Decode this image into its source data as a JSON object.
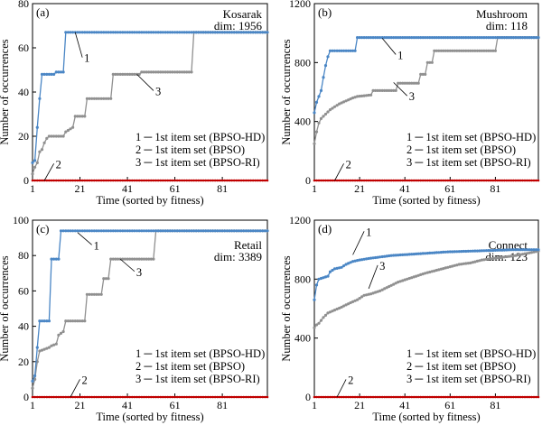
{
  "colors": {
    "series1": "#4a86c5",
    "series2": "#c00000",
    "series3": "#909090",
    "axis": "#000000",
    "background": "#ffffff"
  },
  "chart_data": [
    {
      "type": "line",
      "panel": "(a)",
      "dataset": "Kosarak",
      "dim": "dim: 1956",
      "xlabel": "Time (sorted by fitness)",
      "ylabel": "Number of occurrences",
      "xlim": [
        1,
        100
      ],
      "ylim": [
        0,
        80
      ],
      "xticks": [
        1,
        21,
        41,
        61,
        81
      ],
      "yticks": [
        0,
        20,
        40,
        60,
        80
      ],
      "grid": false,
      "legend": [
        "1 ─ 1st item set (BPSO-HD)",
        "2 ─ 1st item set (BPSO)",
        "3 ─ 1st item set (BPSO-RI)"
      ],
      "annotations": [
        {
          "text": "1",
          "x": 22,
          "y": 54,
          "ax": 19,
          "ay": 67
        },
        {
          "text": "3",
          "x": 52,
          "y": 39,
          "ax": 45,
          "ay": 48
        },
        {
          "text": "2",
          "x": 10,
          "y": 6,
          "ax": 6,
          "ay": 0
        }
      ],
      "series": [
        {
          "values": [
            [
              1,
              8
            ],
            [
              2,
              9
            ],
            [
              3,
              24
            ],
            [
              4,
              37
            ],
            [
              5,
              48
            ],
            [
              10,
              48
            ],
            [
              11,
              49
            ],
            [
              14,
              49
            ],
            [
              15,
              67
            ],
            [
              100,
              67
            ]
          ]
        },
        {
          "values": [
            [
              1,
              0
            ],
            [
              100,
              0
            ]
          ]
        },
        {
          "values": [
            [
              1,
              3
            ],
            [
              2,
              6
            ],
            [
              3,
              8
            ],
            [
              4,
              13
            ],
            [
              5,
              14
            ],
            [
              6,
              17
            ],
            [
              7,
              19
            ],
            [
              8,
              20
            ],
            [
              14,
              20
            ],
            [
              15,
              22
            ],
            [
              18,
              24
            ],
            [
              19,
              29
            ],
            [
              23,
              29
            ],
            [
              24,
              37
            ],
            [
              34,
              37
            ],
            [
              35,
              48
            ],
            [
              46,
              48
            ],
            [
              47,
              49
            ],
            [
              68,
              49
            ],
            [
              69,
              67
            ],
            [
              100,
              67
            ]
          ]
        }
      ]
    },
    {
      "type": "line",
      "panel": "(b)",
      "dataset": "Mushroom",
      "dim": "dim: 118",
      "xlabel": "Time (sorted by fitness)",
      "ylabel": "Number of occurrences",
      "xlim": [
        1,
        100
      ],
      "ylim": [
        0,
        1200
      ],
      "xticks": [
        1,
        21,
        41,
        61,
        81
      ],
      "yticks": [
        0,
        400,
        800,
        1200
      ],
      "grid": false,
      "legend": [
        "1 ─ 1st item set (BPSO-HD)",
        "2 ─ 1st item set (BPSO)",
        "3 ─ 1st item set (BPSO-RI)"
      ],
      "annotations": [
        {
          "text": "1",
          "x": 37,
          "y": 830,
          "ax": 31,
          "ay": 965
        },
        {
          "text": "3",
          "x": 42,
          "y": 550,
          "ax": 36,
          "ay": 665
        },
        {
          "text": "2",
          "x": 14,
          "y": 90,
          "ax": 10,
          "ay": 0
        }
      ],
      "series": [
        {
          "values": [
            [
              1,
              460
            ],
            [
              2,
              530
            ],
            [
              3,
              570
            ],
            [
              4,
              610
            ],
            [
              5,
              700
            ],
            [
              6,
              780
            ],
            [
              7,
              840
            ],
            [
              8,
              880
            ],
            [
              19,
              880
            ],
            [
              20,
              970
            ],
            [
              100,
              970
            ]
          ]
        },
        {
          "values": [
            [
              1,
              0
            ],
            [
              100,
              0
            ]
          ]
        },
        {
          "values": [
            [
              1,
              250
            ],
            [
              2,
              330
            ],
            [
              3,
              390
            ],
            [
              4,
              420
            ],
            [
              6,
              450
            ],
            [
              8,
              480
            ],
            [
              10,
              500
            ],
            [
              12,
              520
            ],
            [
              15,
              540
            ],
            [
              18,
              560
            ],
            [
              20,
              570
            ],
            [
              26,
              580
            ],
            [
              27,
              610
            ],
            [
              37,
              610
            ],
            [
              38,
              660
            ],
            [
              47,
              660
            ],
            [
              48,
              720
            ],
            [
              50,
              720
            ],
            [
              51,
              800
            ],
            [
              53,
              800
            ],
            [
              54,
              880
            ],
            [
              81,
              880
            ],
            [
              82,
              970
            ],
            [
              100,
              970
            ]
          ]
        }
      ]
    },
    {
      "type": "line",
      "panel": "(c)",
      "dataset": "Retail",
      "dim": "dim: 3389",
      "xlabel": "Time (sorted by fitness)",
      "ylabel": "Number of occurrences",
      "xlim": [
        1,
        100
      ],
      "ylim": [
        0,
        100
      ],
      "xticks": [
        1,
        21,
        41,
        61,
        81
      ],
      "yticks": [
        0,
        20,
        40,
        60,
        80,
        100
      ],
      "grid": false,
      "legend": [
        "1 ─ 1st item set (BPSO-HD)",
        "2 ─ 1st item set (BPSO)",
        "3 ─ 1st item set (BPSO-RI)"
      ],
      "annotations": [
        {
          "text": "1",
          "x": 26,
          "y": 84,
          "ax": 20,
          "ay": 93
        },
        {
          "text": "3",
          "x": 44,
          "y": 69,
          "ax": 38,
          "ay": 78
        },
        {
          "text": "2",
          "x": 21,
          "y": 8,
          "ax": 17,
          "ay": 0
        }
      ],
      "series": [
        {
          "values": [
            [
              1,
              9
            ],
            [
              2,
              12
            ],
            [
              3,
              28
            ],
            [
              4,
              43
            ],
            [
              8,
              43
            ],
            [
              9,
              78
            ],
            [
              12,
              78
            ],
            [
              13,
              94
            ],
            [
              100,
              94
            ]
          ]
        },
        {
          "values": [
            [
              1,
              0
            ],
            [
              100,
              0
            ]
          ]
        },
        {
          "values": [
            [
              1,
              5
            ],
            [
              2,
              10
            ],
            [
              3,
              20
            ],
            [
              4,
              26
            ],
            [
              8,
              28
            ],
            [
              9,
              29
            ],
            [
              11,
              30
            ],
            [
              12,
              35
            ],
            [
              13,
              36
            ],
            [
              14,
              37
            ],
            [
              15,
              43
            ],
            [
              23,
              43
            ],
            [
              24,
              58
            ],
            [
              30,
              58
            ],
            [
              31,
              67
            ],
            [
              33,
              67
            ],
            [
              34,
              78
            ],
            [
              52,
              78
            ],
            [
              53,
              94
            ],
            [
              100,
              94
            ]
          ]
        }
      ]
    },
    {
      "type": "line",
      "panel": "(d)",
      "dataset": "Connect",
      "dim": "dim: 123",
      "xlabel": "Time (sorted by fitness)",
      "ylabel": "Number of occurrences",
      "xlim": [
        1,
        100
      ],
      "ylim": [
        0,
        1200
      ],
      "xticks": [
        1,
        21,
        41,
        61,
        81
      ],
      "yticks": [
        0,
        400,
        800,
        1200
      ],
      "grid": false,
      "legend": [
        "1 ─ 1st item set (BPSO-HD)",
        "2 ─ 1st item set (BPSO)",
        "3 ─ 1st item set (BPSO-RI)"
      ],
      "annotations": [
        {
          "text": "1",
          "x": 23,
          "y": 1100,
          "ax": 18,
          "ay": 965
        },
        {
          "text": "3",
          "x": 29,
          "y": 870,
          "ax": 25,
          "ay": 735
        },
        {
          "text": "2",
          "x": 15,
          "y": 95,
          "ax": 11,
          "ay": 0
        }
      ],
      "series": [
        {
          "values": [
            [
              1,
              660
            ],
            [
              2,
              760
            ],
            [
              3,
              800
            ],
            [
              5,
              810
            ],
            [
              7,
              820
            ],
            [
              8,
              850
            ],
            [
              10,
              870
            ],
            [
              13,
              880
            ],
            [
              15,
              900
            ],
            [
              18,
              920
            ],
            [
              21,
              930
            ],
            [
              25,
              940
            ],
            [
              30,
              950
            ],
            [
              35,
              960
            ],
            [
              40,
              965
            ],
            [
              50,
              975
            ],
            [
              60,
              985
            ],
            [
              70,
              990
            ],
            [
              80,
              995
            ],
            [
              90,
              1000
            ],
            [
              100,
              1000
            ]
          ]
        },
        {
          "values": [
            [
              1,
              0
            ],
            [
              100,
              0
            ]
          ]
        },
        {
          "values": [
            [
              1,
              470
            ],
            [
              2,
              490
            ],
            [
              3,
              500
            ],
            [
              5,
              540
            ],
            [
              7,
              570
            ],
            [
              10,
              590
            ],
            [
              13,
              610
            ],
            [
              17,
              640
            ],
            [
              20,
              660
            ],
            [
              23,
              690
            ],
            [
              26,
              700
            ],
            [
              30,
              720
            ],
            [
              34,
              750
            ],
            [
              38,
              780
            ],
            [
              42,
              800
            ],
            [
              46,
              820
            ],
            [
              50,
              840
            ],
            [
              55,
              860
            ],
            [
              60,
              880
            ],
            [
              65,
              900
            ],
            [
              70,
              910
            ],
            [
              75,
              930
            ],
            [
              80,
              940
            ],
            [
              85,
              950
            ],
            [
              90,
              960
            ],
            [
              95,
              975
            ],
            [
              100,
              990
            ]
          ]
        }
      ]
    }
  ]
}
